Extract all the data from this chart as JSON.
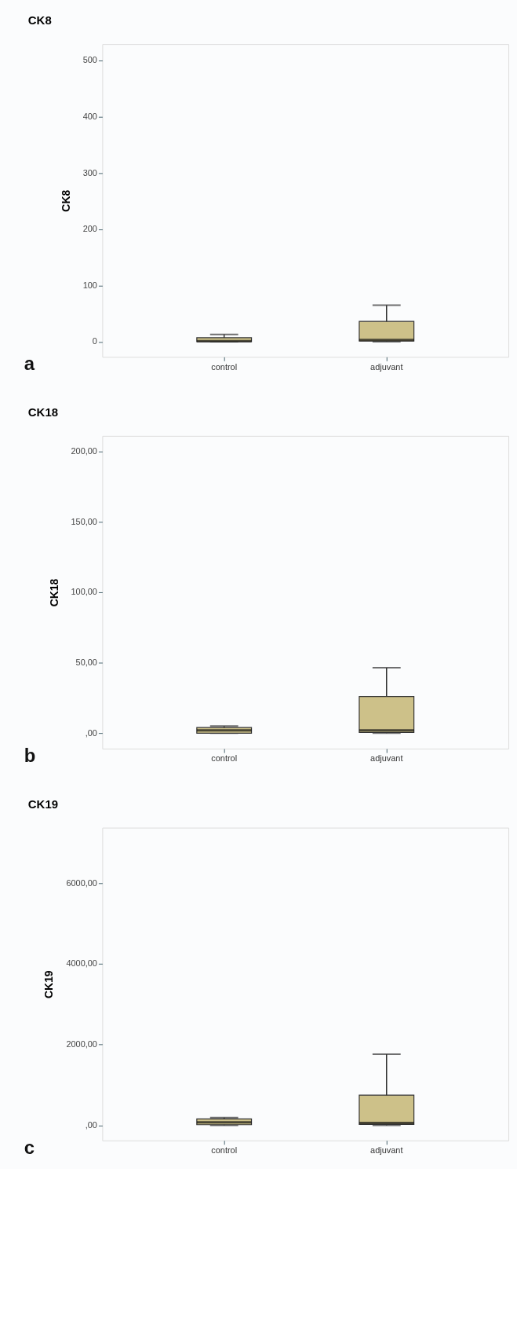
{
  "chart_data": [
    {
      "type": "box",
      "title": "CK8",
      "ylabel": "CK8",
      "categories": [
        "control",
        "adjuvant"
      ],
      "color": "#cdc189",
      "boxes": [
        {
          "low": 0,
          "q1": 0,
          "median": 1,
          "q3": 7,
          "high": 13
        },
        {
          "low": 0,
          "q1": 1,
          "median": 3,
          "q3": 36,
          "high": 65
        }
      ],
      "ylim": [
        -27,
        529
      ],
      "yticks": [
        0,
        100,
        200,
        300,
        400,
        500
      ],
      "grid": false,
      "annotations": [
        "a"
      ]
    },
    {
      "type": "box",
      "title": "CK18",
      "ylabel": "CK18",
      "categories": [
        "control",
        "adjuvant"
      ],
      "color": "#cdc189",
      "boxes": [
        {
          "low": 0,
          "q1": 0,
          "median": 2,
          "q3": 4,
          "high": 5
        },
        {
          "low": 0,
          "q1": 0.5,
          "median": 2,
          "q3": 26,
          "high": 46.5
        }
      ],
      "ylim": [
        -11,
        211
      ],
      "yticks": [
        {
          "value": 0,
          "label": ",00"
        },
        {
          "value": 50,
          "label": "50,00"
        },
        {
          "value": 100,
          "label": "100,00"
        },
        {
          "value": 150,
          "label": "150,00"
        },
        {
          "value": 200,
          "label": "200,00"
        }
      ],
      "grid": false,
      "annotations": [
        "b"
      ]
    },
    {
      "type": "box",
      "title": "CK19",
      "ylabel": "CK19",
      "categories": [
        "control",
        "adjuvant"
      ],
      "color": "#cdc189",
      "boxes": [
        {
          "low": 0,
          "q1": 14,
          "median": 71,
          "q3": 156,
          "high": 190
        },
        {
          "low": 0,
          "q1": 21,
          "median": 57,
          "q3": 745,
          "high": 1760
        }
      ],
      "ylim": [
        -376,
        7376
      ],
      "yticks": [
        {
          "value": 0,
          "label": ",00"
        },
        {
          "value": 2000,
          "label": "2000,00"
        },
        {
          "value": 4000,
          "label": "4000,00"
        },
        {
          "value": 6000,
          "label": "6000,00"
        }
      ],
      "grid": false,
      "annotations": [
        "c"
      ]
    }
  ]
}
